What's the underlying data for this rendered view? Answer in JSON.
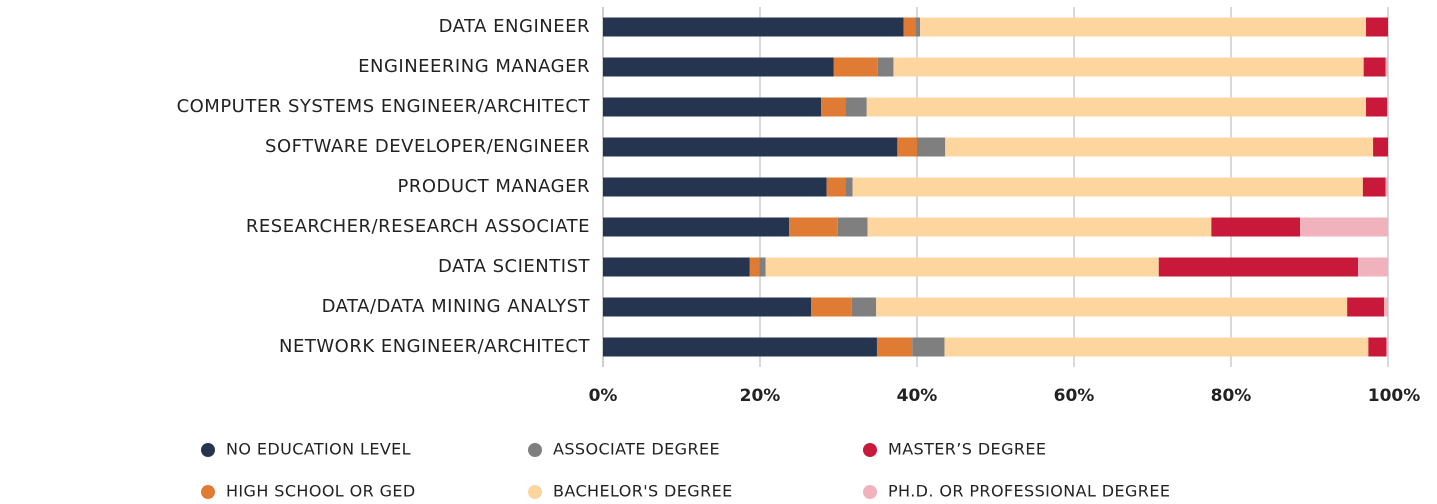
{
  "chart_data": {
    "type": "stacked-horizontal-bar",
    "categories": [
      "DATA ENGINEER",
      "ENGINEERING MANAGER",
      "COMPUTER SYSTEMS ENGINEER/ARCHITECT",
      "SOFTWARE DEVELOPER/ENGINEER",
      "PRODUCT MANAGER",
      "RESEARCHER/RESEARCH ASSOCIATE",
      "DATA SCIENTIST",
      "DATA/DATA MINING ANALYST",
      "NETWORK ENGINEER/ARCHITECT"
    ],
    "series": [
      {
        "name": "NO EDUCATION LEVEL",
        "color": "#253550",
        "values": [
          38.3,
          29.4,
          27.8,
          37.5,
          28.5,
          23.7,
          18.7,
          26.5,
          34.9
        ]
      },
      {
        "name": "HIGH SCHOOL OR GED",
        "color": "#e07b33",
        "values": [
          1.5,
          5.6,
          3.1,
          2.5,
          2.4,
          6.2,
          1.2,
          5.2,
          4.5
        ]
      },
      {
        "name": "ASSOCIATE DEGREE",
        "color": "#7f7f7f",
        "values": [
          0.6,
          2.0,
          2.7,
          3.6,
          0.9,
          3.8,
          0.8,
          3.1,
          4.1
        ]
      },
      {
        "name": "BACHELOR'S DEGREE",
        "color": "#fcd59f",
        "values": [
          56.8,
          59.9,
          63.6,
          54.5,
          65.0,
          43.8,
          50.1,
          60.0,
          54.0
        ]
      },
      {
        "name": "MASTER’S DEGREE",
        "color": "#c8193a",
        "values": [
          2.8,
          2.8,
          2.7,
          1.9,
          2.9,
          11.3,
          25.4,
          4.7,
          2.3
        ]
      },
      {
        "name": "PH.D. OR PROFESSIONAL DEGREE",
        "color": "#f0b3be",
        "values": [
          0,
          0.3,
          0.1,
          0,
          0.3,
          11.2,
          3.8,
          0.5,
          0.2
        ]
      }
    ],
    "xlim": [
      0,
      100
    ],
    "xticks": [
      {
        "value": 0,
        "label": "0%"
      },
      {
        "value": 20,
        "label": "20%"
      },
      {
        "value": 40,
        "label": "40%"
      },
      {
        "value": 60,
        "label": "60%"
      },
      {
        "value": 80,
        "label": "80%"
      },
      {
        "value": 100,
        "label": "100%"
      }
    ],
    "grid": true,
    "legend": "bottom"
  }
}
